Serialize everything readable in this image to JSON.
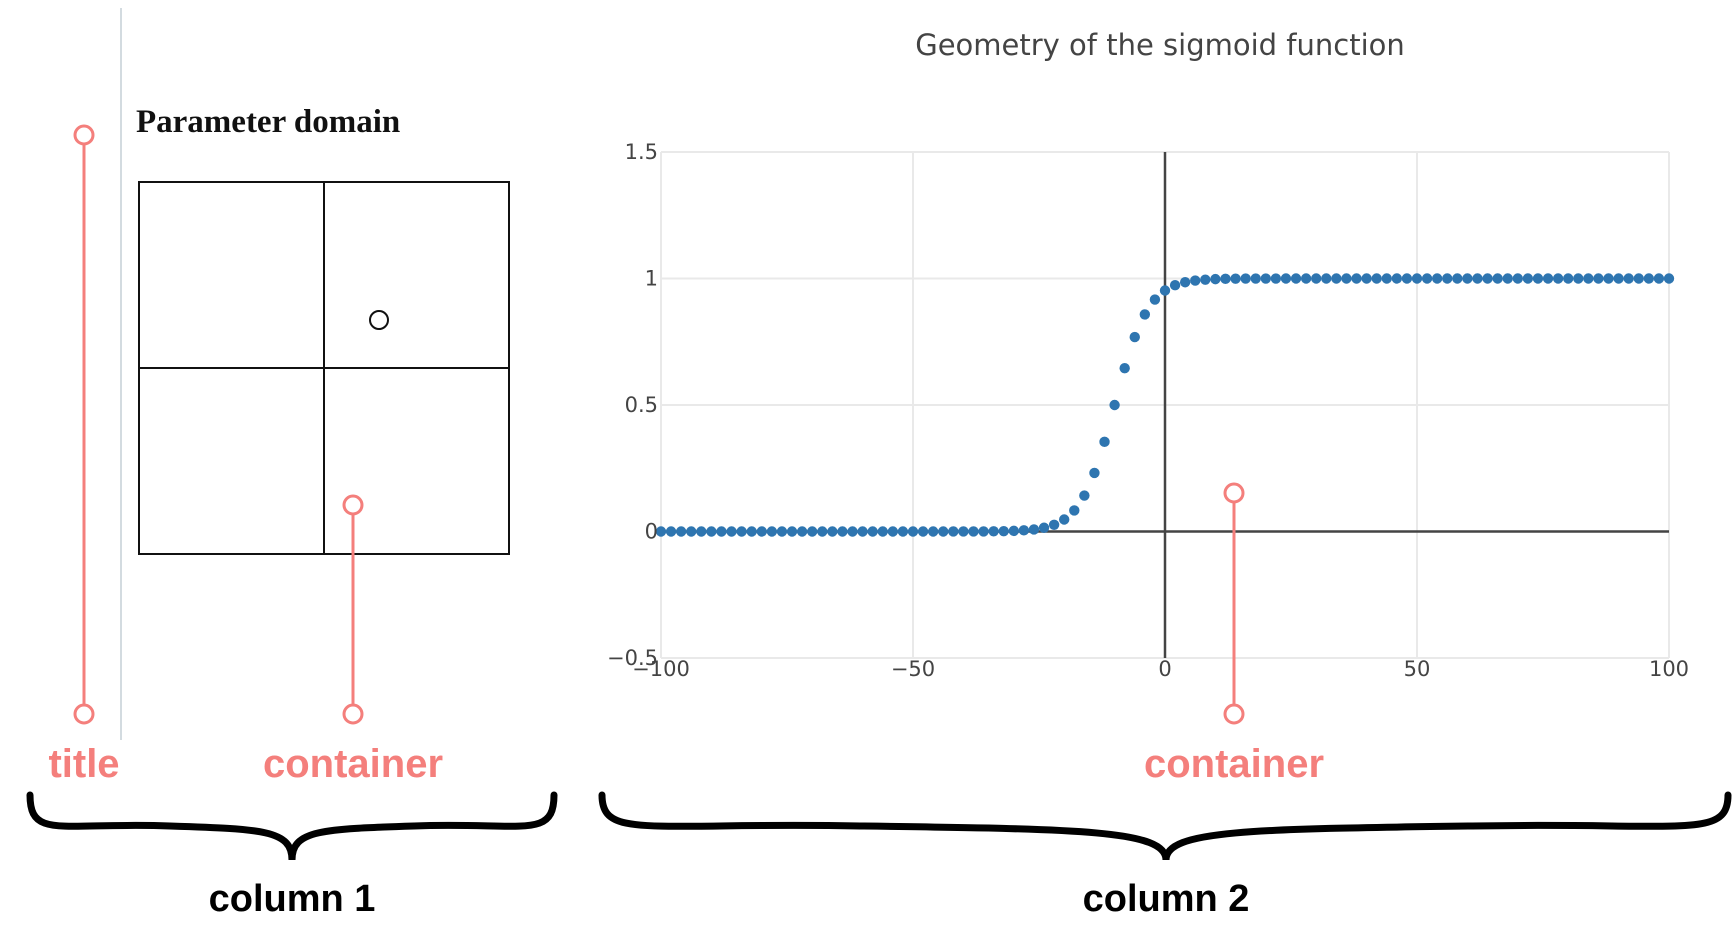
{
  "column1": {
    "title": "Parameter domain",
    "annotation_title": "title",
    "annotation_container": "container",
    "label": "column 1"
  },
  "column2": {
    "annotation_container": "container",
    "label": "column 2"
  },
  "colors": {
    "annotation": "#f47f7c",
    "series": "#2e75b0",
    "grid": "#e9e9e9",
    "axis": "#444444"
  },
  "chart_data": {
    "type": "scatter",
    "title": "Geometry of the sigmoid function",
    "xlabel": "",
    "ylabel": "",
    "xlim": [
      -100,
      100
    ],
    "ylim": [
      -0.5,
      1.5
    ],
    "x_ticks": [
      -100,
      -50,
      0,
      50,
      100
    ],
    "y_ticks": [
      -0.5,
      0,
      0.5,
      1,
      1.5
    ],
    "x_tick_labels": [
      "−100",
      "−50",
      "0",
      "50",
      "100"
    ],
    "y_tick_labels": [
      "−0.5",
      "0",
      "0.5",
      "1",
      "1.5"
    ],
    "grid": true,
    "function": "sigmoid(0.3*(x+10))",
    "x_step": 2,
    "series": [
      {
        "marker": "circle"
      }
    ]
  }
}
